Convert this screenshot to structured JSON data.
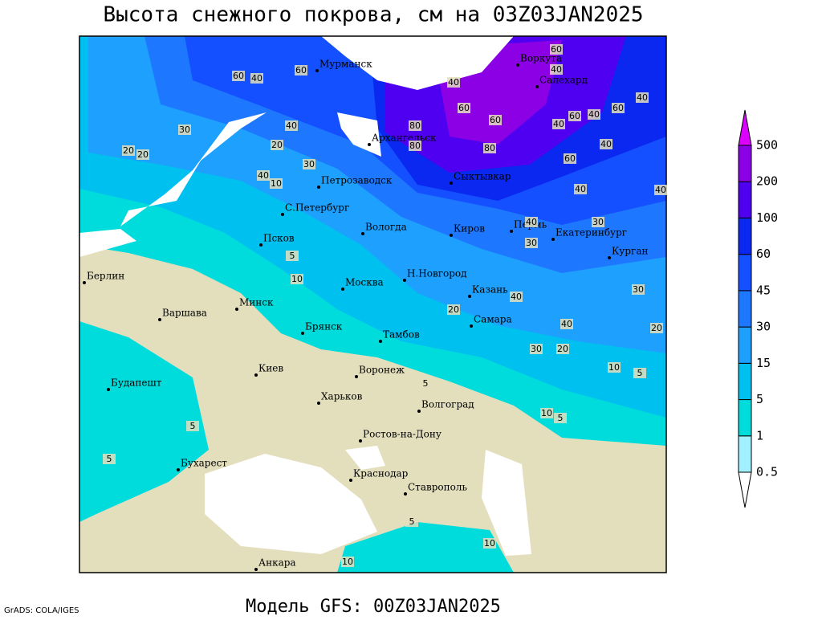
{
  "title": "Высота снежного покрова, см на 03Z03JAN2025",
  "subtitle": "Модель GFS: 00Z03JAN2025",
  "credit": "GrADS: COLA/IGES",
  "cities": [
    "Мурманск",
    "Воркута",
    "Салехард",
    "Архангельск",
    "Петрозаводск",
    "Сыктывкар",
    "С.Петербург",
    "Вологда",
    "Киров",
    "Пермь",
    "Екатеринбург",
    "Курган",
    "Псков",
    "Берлин",
    "Н.Новгород",
    "Москва",
    "Казань",
    "Минск",
    "Варшава",
    "Самара",
    "Брянск",
    "Тамбов",
    "Киев",
    "Воронеж",
    "Будапешт",
    "Харьков",
    "Волгоград",
    "Ростов-на-Дону",
    "Бухарест",
    "Краснодар",
    "Ставрополь",
    "Анкара"
  ],
  "contour_labels": [
    60,
    40,
    60,
    40,
    60,
    40,
    30,
    40,
    20,
    30,
    20,
    20,
    10,
    40,
    80,
    60,
    80,
    80,
    60,
    40,
    60,
    40,
    60,
    40,
    40,
    60,
    40,
    40,
    30,
    30,
    40,
    30,
    20,
    40,
    40,
    20,
    30,
    20,
    10,
    5,
    5,
    10,
    5,
    10,
    5,
    10,
    5,
    5,
    5,
    10
  ],
  "colorbar": {
    "levels": [
      0.5,
      1,
      5,
      15,
      30,
      45,
      60,
      100,
      200,
      500
    ],
    "colors": [
      "#ffffff",
      "#a0f0ff",
      "#00dcdc",
      "#00c0f0",
      "#1ea0ff",
      "#1e78ff",
      "#1450ff",
      "#0a28f0",
      "#5000f0",
      "#8c00e6",
      "#dc00ff"
    ]
  }
}
